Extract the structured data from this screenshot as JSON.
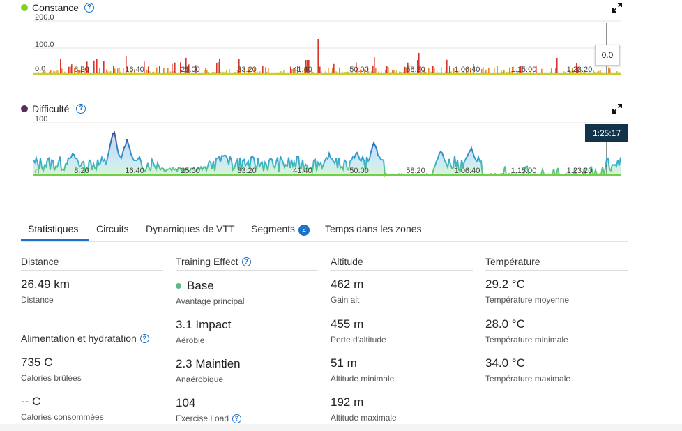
{
  "charts": {
    "constance": {
      "title": "Constance",
      "dot_color": "#7ed321",
      "y_labels": [
        "200.0",
        "100.0",
        "0.0"
      ],
      "x_labels": [
        "8:20",
        "16:40",
        "25:00",
        "33:20",
        "41:40",
        "50:00",
        "58:20",
        "1:06:40",
        "1:15:00",
        "1:23:20"
      ],
      "tooltip": "0.0"
    },
    "difficulte": {
      "title": "Difficulté",
      "dot_color": "#5a2d5f",
      "y_labels": [
        "100",
        "0"
      ],
      "x_labels": [
        "8:20",
        "16:40",
        "25:00",
        "33:20",
        "41:40",
        "50:00",
        "58:20",
        "1:06:40",
        "1:15:00",
        "1:23:20"
      ],
      "tooltip": "1:25:17"
    }
  },
  "tabs": [
    {
      "label": "Statistiques",
      "active": true
    },
    {
      "label": "Circuits"
    },
    {
      "label": "Dynamiques de VTT"
    },
    {
      "label": "Segments",
      "badge": "2"
    },
    {
      "label": "Temps dans les zones"
    }
  ],
  "stats": {
    "distance": {
      "heading": "Distance",
      "value": "26.49 km",
      "label": "Distance"
    },
    "alimentation": {
      "heading": "Alimentation et hydratation",
      "items": [
        {
          "value": "735 C",
          "label": "Calories brûlées"
        },
        {
          "value": "-- C",
          "label": "Calories consommées"
        }
      ]
    },
    "training": {
      "heading": "Training Effect",
      "items": [
        {
          "value": "Base",
          "label": "Avantage principal"
        },
        {
          "value": "3.1 Impact",
          "label": "Aérobie"
        },
        {
          "value": "2.3 Maintien",
          "label": "Anaérobique"
        },
        {
          "value": "104",
          "label": "Exercise Load"
        }
      ]
    },
    "altitude": {
      "heading": "Altitude",
      "items": [
        {
          "value": "462 m",
          "label": "Gain alt"
        },
        {
          "value": "455 m",
          "label": "Perte d'altitude"
        },
        {
          "value": "51 m",
          "label": "Altitude minimale"
        },
        {
          "value": "192 m",
          "label": "Altitude maximale"
        }
      ]
    },
    "temperature": {
      "heading": "Température",
      "items": [
        {
          "value": "29.2 °C",
          "label": "Température moyenne"
        },
        {
          "value": "28.0 °C",
          "label": "Température minimale"
        },
        {
          "value": "34.0 °C",
          "label": "Température maximale"
        }
      ]
    }
  }
}
